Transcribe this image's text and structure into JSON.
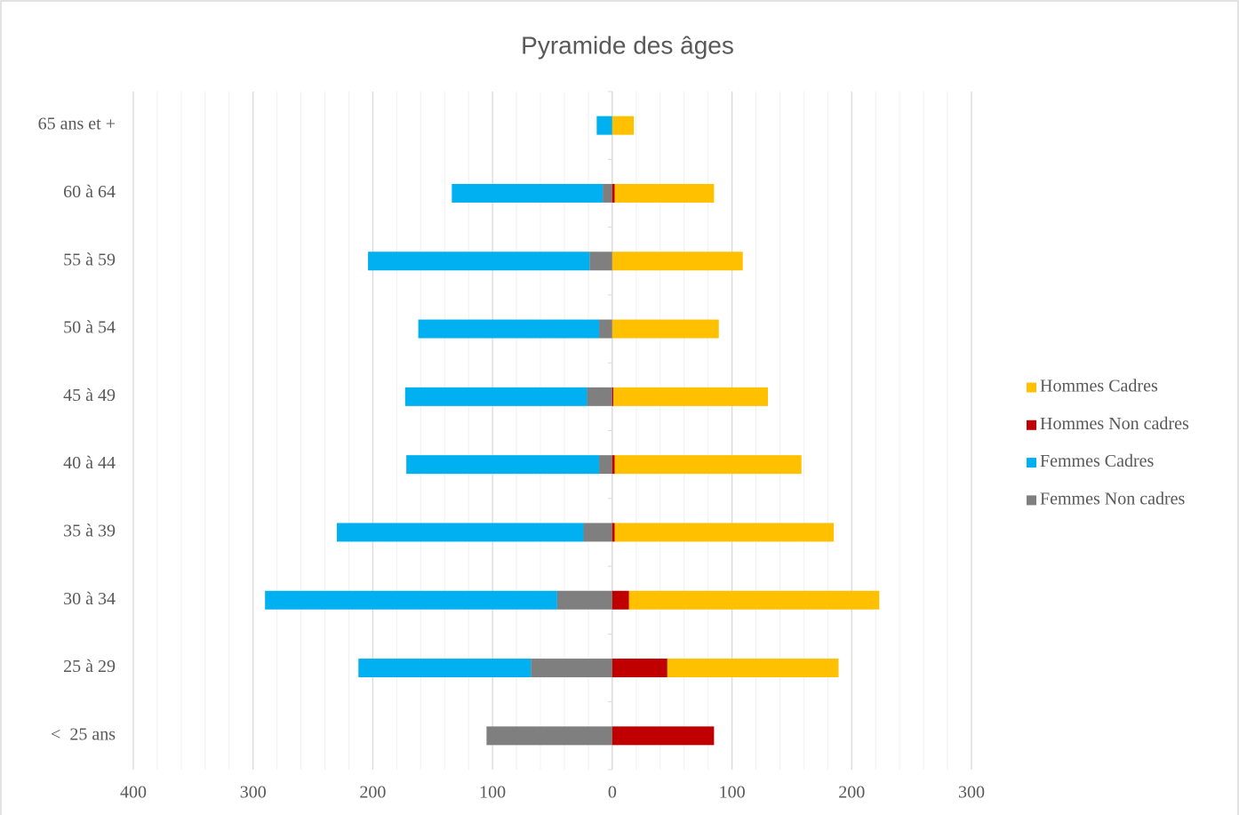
{
  "chart_data": {
    "type": "bar",
    "orientation": "horizontal",
    "stacked": true,
    "title": "Pyramide des âges",
    "categories": [
      "<  25 ans",
      "25 à 29",
      "30 à 34",
      "35 à 39",
      "40 à 44",
      "45 à 49",
      "50 à 54",
      "55 à 59",
      "60 à 64",
      "65 ans et +"
    ],
    "series": [
      {
        "name": "Femmes Non cadres",
        "color": "#7f7f7f",
        "values": [
          -105,
          -68,
          -46,
          -24,
          -11,
          -21,
          -11,
          -19,
          -8,
          0
        ]
      },
      {
        "name": "Femmes Cadres",
        "color": "#00b0f0",
        "values": [
          0,
          -144,
          -244,
          -206,
          -161,
          -152,
          -151,
          -185,
          -126,
          -13
        ]
      },
      {
        "name": "Hommes Non cadres",
        "color": "#c00000",
        "values": [
          85,
          46,
          14,
          2,
          2,
          1,
          0,
          0,
          2,
          0
        ]
      },
      {
        "name": "Hommes Cadres",
        "color": "#ffc000",
        "values": [
          0,
          143,
          209,
          183,
          156,
          129,
          89,
          109,
          83,
          18
        ]
      }
    ],
    "xlim": [
      -400,
      300
    ],
    "xticks": [
      {
        "value": -400,
        "label": "400"
      },
      {
        "value": -300,
        "label": "300"
      },
      {
        "value": -200,
        "label": "200"
      },
      {
        "value": -100,
        "label": "100"
      },
      0,
      100,
      200,
      300
    ],
    "x_minor_ticks": [
      -380,
      -360,
      -340,
      -320,
      -280,
      -260,
      -240,
      -220,
      -180,
      -160,
      -140,
      -120,
      -80,
      -60,
      -40,
      -20,
      20,
      40,
      60,
      80,
      120,
      140,
      160,
      180,
      220,
      240,
      260,
      280
    ],
    "grid": true,
    "legend": "right"
  }
}
